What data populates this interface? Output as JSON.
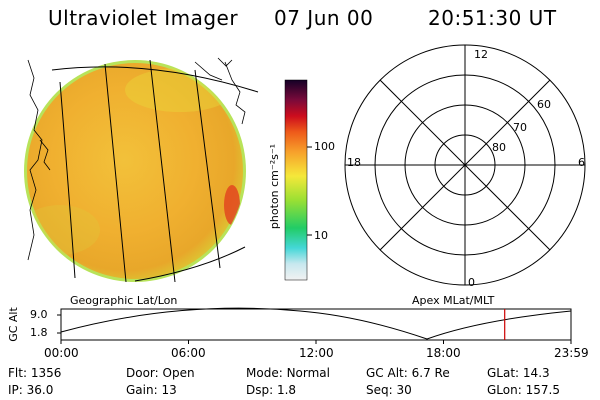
{
  "header": {
    "instrument": "Ultraviolet Imager",
    "date": "07 Jun 00",
    "time": "20:51:30 UT"
  },
  "colorbar": {
    "label": "photon cm⁻²s⁻¹",
    "ticks": [
      "100",
      "10"
    ]
  },
  "polar": {
    "mlt_labels": [
      "12",
      "18",
      "6",
      "0"
    ],
    "lat_labels": [
      "60",
      "70",
      "80"
    ]
  },
  "panel_labels": {
    "left": "Geographic Lat/Lon",
    "right": "Apex MLat/MLT"
  },
  "altitude_plot": {
    "y_label": "GC Alt",
    "y_ticks": [
      "9.0",
      "1.8"
    ],
    "x_ticks": [
      "00:00",
      "06:00",
      "12:00",
      "18:00",
      "23:59"
    ],
    "current_time_fraction": 0.87,
    "marker_color": "#cc0000"
  },
  "info": {
    "row1": [
      {
        "key": "Flt:",
        "value": "1356"
      },
      {
        "key": "Door:",
        "value": "Open"
      },
      {
        "key": "Mode:",
        "value": "Normal"
      },
      {
        "key": "GC Alt:",
        "value": "6.7 Re"
      },
      {
        "key": "GLat:",
        "value": "14.3"
      }
    ],
    "row2": [
      {
        "key": "IP:",
        "value": "36.0"
      },
      {
        "key": "Gain:",
        "value": "13"
      },
      {
        "key": "Dsp:",
        "value": "1.8"
      },
      {
        "key": "Seq:",
        "value": "30"
      },
      {
        "key": "GLon:",
        "value": "157.5"
      }
    ]
  }
}
